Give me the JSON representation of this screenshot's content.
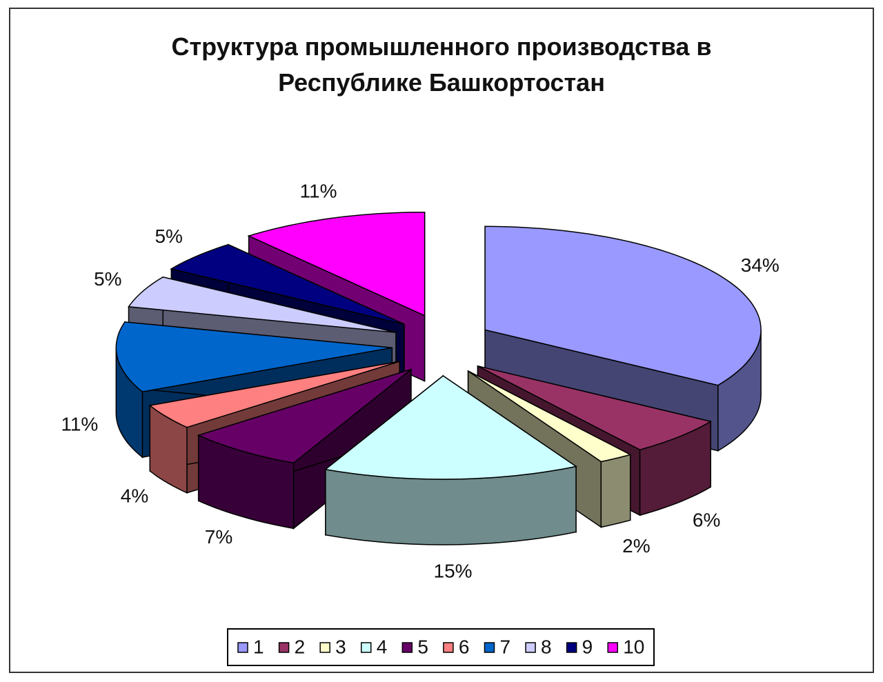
{
  "chart_data": {
    "type": "pie",
    "title": "Структура промышленного производства в Республике Башкортостан",
    "categories": [
      "1",
      "2",
      "3",
      "4",
      "5",
      "6",
      "7",
      "8",
      "9",
      "10"
    ],
    "values": [
      34,
      6,
      2,
      15,
      7,
      4,
      11,
      5,
      5,
      11
    ],
    "value_labels": [
      "34%",
      "6%",
      "2%",
      "15%",
      "7%",
      "4%",
      "11%",
      "5%",
      "5%",
      "11%"
    ],
    "colors": [
      "#9999ff",
      "#993366",
      "#ffffcc",
      "#ccffff",
      "#660066",
      "#ff8080",
      "#0066cc",
      "#ccccff",
      "#000080",
      "#ff00ff"
    ],
    "legend": "bottom"
  }
}
